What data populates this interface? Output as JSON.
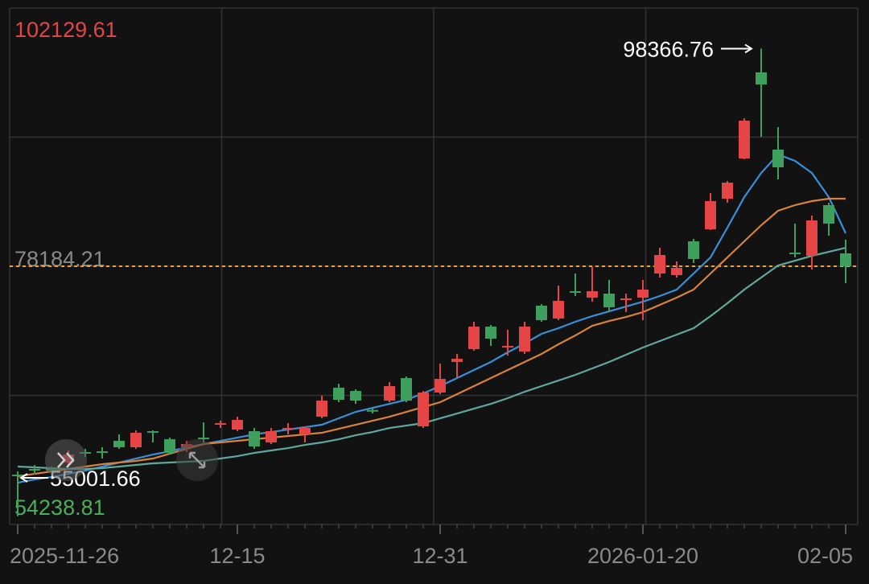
{
  "chart_data": {
    "type": "candlestick",
    "categories": [
      "2025-11-26",
      null,
      null,
      null,
      null,
      null,
      null,
      null,
      null,
      null,
      null,
      null,
      null,
      "12-15",
      null,
      null,
      null,
      null,
      null,
      null,
      null,
      null,
      null,
      null,
      null,
      "12-31",
      null,
      null,
      null,
      null,
      null,
      null,
      null,
      null,
      null,
      null,
      null,
      "2026-01-20",
      null,
      null,
      null,
      null,
      null,
      null,
      null,
      null,
      null,
      null,
      null,
      "02-05"
    ],
    "open": [
      58862,
      59384,
      59384,
      59981,
      60950,
      61025,
      61995,
      61398,
      62890,
      62144,
      61398,
      62293,
      63561,
      63039,
      62890,
      61846,
      63039,
      62592,
      64233,
      66918,
      66620,
      64850,
      65725,
      67814,
      63338,
      66471,
      69306,
      70499,
      72588,
      70700,
      70275,
      74528,
      73334,
      75870,
      75274,
      75647,
      75050,
      75274,
      77512,
      77362,
      80496,
      81615,
      84449,
      88179,
      96162,
      89000,
      79451,
      79153,
      83853,
      79377
    ],
    "high": [
      59160,
      59757,
      59608,
      61100,
      61249,
      61398,
      62592,
      62965,
      62965,
      62293,
      61995,
      63711,
      63860,
      64233,
      63188,
      63188,
      63636,
      63338,
      66172,
      67291,
      66769,
      64979,
      67441,
      67963,
      66620,
      69156,
      70052,
      73036,
      72737,
      72290,
      73036,
      74677,
      76393,
      77512,
      78108,
      76915,
      75647,
      76915,
      79899,
      78631,
      80720,
      84972,
      86091,
      91909,
      98366.76,
      91089,
      82137,
      82883,
      84076,
      80645
    ],
    "low": [
      55001.66,
      58862,
      59160,
      59757,
      60503,
      60354,
      61249,
      61249,
      61846,
      60727,
      60950,
      61696,
      63188,
      62890,
      61249,
      61696,
      62592,
      61846,
      64084,
      65576,
      65426,
      64531,
      65576,
      65576,
      63188,
      66322,
      67814,
      70350,
      70798,
      69902,
      70052,
      73036,
      73185,
      75423,
      74901,
      73931,
      73931,
      73185,
      77139,
      77139,
      78481,
      81540,
      84076,
      88105,
      90194,
      86240,
      79004,
      77885,
      81018,
      76616
    ],
    "close": [
      58712,
      59235,
      59310,
      60727,
      60876,
      60950,
      61398,
      62741,
      62815,
      60876,
      61696,
      62219,
      63636,
      63934,
      61473,
      62890,
      63188,
      63188,
      65725,
      65799,
      65725,
      64755,
      67068,
      65725,
      66471,
      67739,
      69604,
      72588,
      71469,
      70798,
      72588,
      73185,
      74975,
      75796,
      75870,
      74378,
      75199,
      76020,
      79227,
      78034,
      78854,
      84226,
      85941,
      91686,
      95043,
      87359,
      79377,
      82435,
      82137,
      78184.21
    ],
    "up_color": "#e64545",
    "down_color": "#3f9f5c",
    "lines": [
      {
        "color": "#3a8fd9",
        "values": [
          58116,
          58414,
          58638,
          58936,
          59235,
          59608,
          59981,
          60354,
          60727,
          61025,
          61398,
          61696,
          61995,
          62293,
          62592,
          62815,
          63039,
          63263,
          63487,
          64084,
          64680,
          65053,
          65426,
          65799,
          66396,
          67068,
          67814,
          68560,
          69306,
          70201,
          71021,
          71917,
          72439,
          73036,
          73558,
          74005,
          74453,
          74901,
          75423,
          76020,
          77512,
          79004,
          81764,
          84599,
          86837,
          88552,
          87956,
          86837,
          84599,
          81242
        ]
      },
      {
        "color": "#d9823c",
        "values": [
          58712,
          58936,
          59160,
          59384,
          59608,
          59831,
          59981,
          60130,
          60354,
          60801,
          61249,
          61696,
          61846,
          61995,
          62144,
          62293,
          62443,
          62592,
          62741,
          63114,
          63487,
          63860,
          64233,
          64680,
          65128,
          65576,
          66322,
          67068,
          67814,
          68560,
          69306,
          70052,
          70947,
          71767,
          72663,
          73110,
          73483,
          73931,
          74602,
          75274,
          76020,
          77512,
          79004,
          80496,
          81988,
          83330,
          83853,
          84226,
          84450,
          84450
        ]
      },
      {
        "color": "#5fa89a",
        "values": [
          59608,
          59533,
          59458,
          59384,
          59384,
          59458,
          59608,
          59757,
          59906,
          59981,
          60055,
          60130,
          60354,
          60577,
          60876,
          61100,
          61323,
          61622,
          61846,
          62144,
          62517,
          62815,
          63188,
          63412,
          63636,
          64084,
          64531,
          64979,
          65426,
          65949,
          66545,
          67068,
          67590,
          68112,
          68709,
          69306,
          69977,
          70648,
          71245,
          71842,
          72439,
          73558,
          74751,
          76020,
          77139,
          78258,
          78705,
          79153,
          79526,
          79899
        ]
      }
    ],
    "ylim": [
      54238.81,
      102129.61
    ],
    "grid": true
  }
}
